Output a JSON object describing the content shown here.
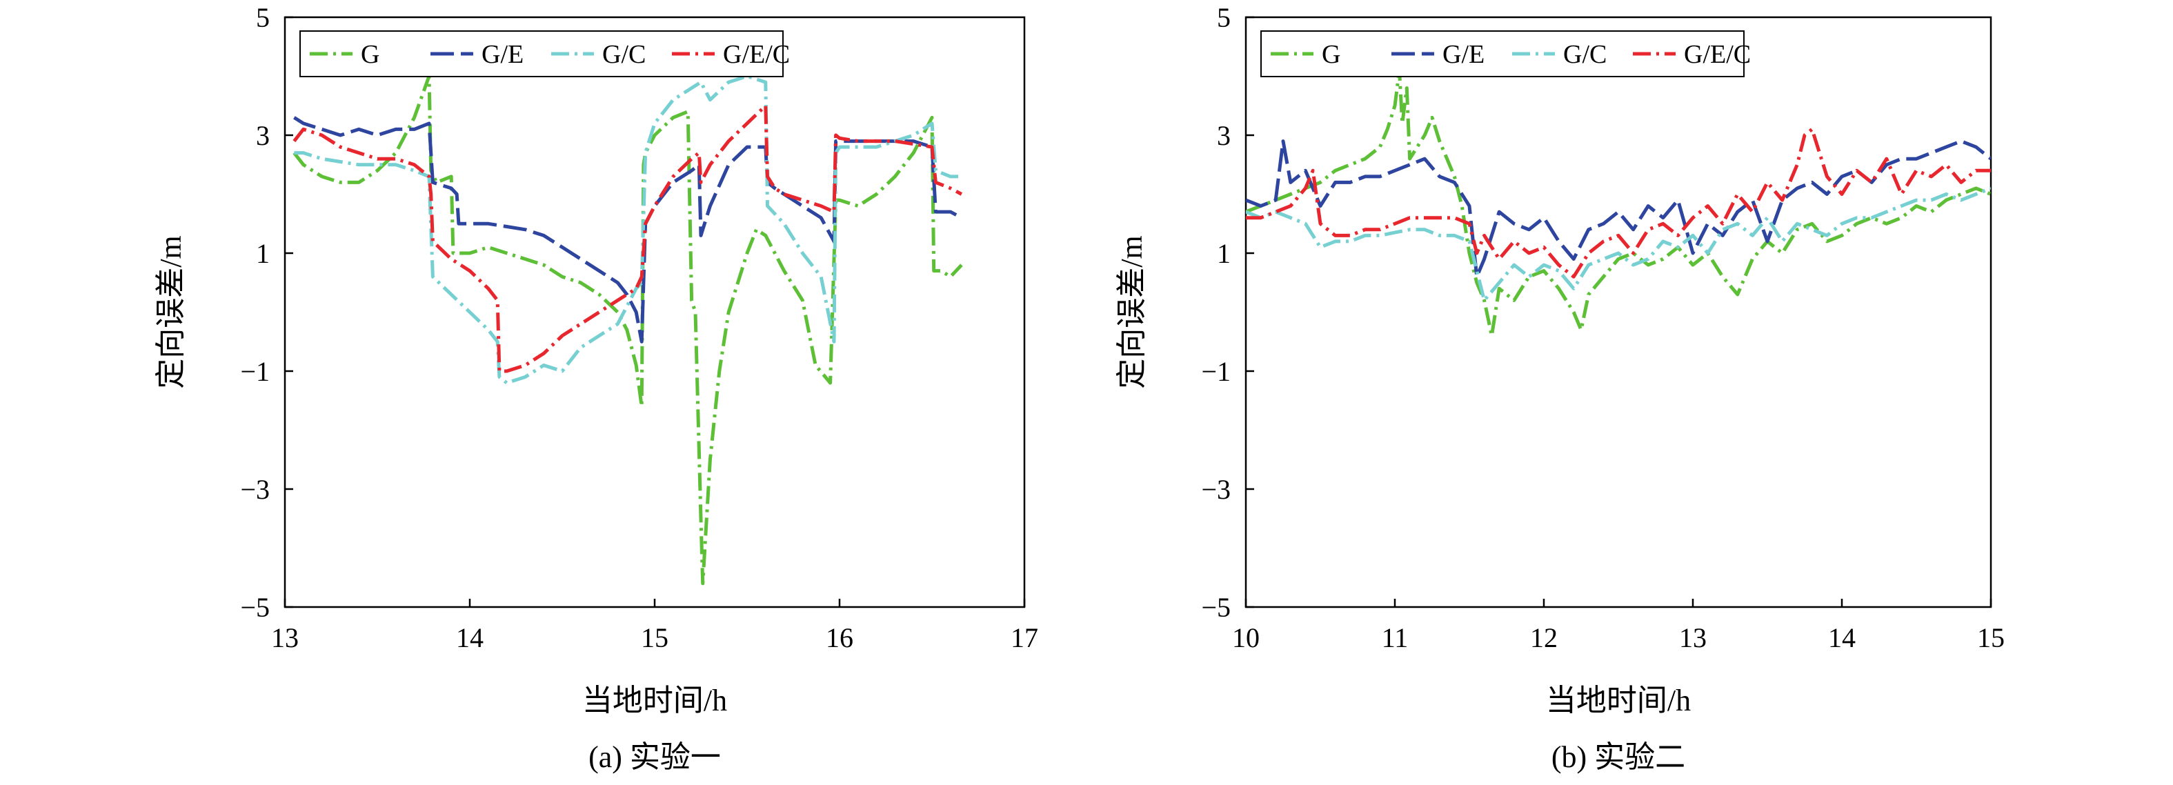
{
  "chart_data": [
    {
      "type": "line",
      "caption": "(a) 实验一",
      "xlabel": "当地时间/h",
      "ylabel": "定向误差/m",
      "xlim": [
        13,
        17
      ],
      "ylim": [
        -5,
        5
      ],
      "xticks": [
        13,
        14,
        15,
        16,
        17
      ],
      "yticks": [
        5,
        3,
        1,
        -1,
        -3,
        -5
      ],
      "ytick_labels": [
        "5",
        "3",
        "1",
        "−1",
        "−3",
        "−5"
      ],
      "grid": false,
      "legend": "top-left",
      "series": [
        {
          "name": "G",
          "color": "#5cbf35",
          "dash": "dashdot",
          "x": [
            13.05,
            13.1,
            13.2,
            13.3,
            13.4,
            13.5,
            13.6,
            13.7,
            13.78,
            13.79,
            13.82,
            13.9,
            13.91,
            14.0,
            14.1,
            14.2,
            14.3,
            14.4,
            14.5,
            14.6,
            14.7,
            14.8,
            14.85,
            14.9,
            14.93,
            14.94,
            14.95,
            15.0,
            15.1,
            15.18,
            15.2,
            15.22,
            15.25,
            15.26,
            15.3,
            15.35,
            15.4,
            15.5,
            15.55,
            15.6,
            15.7,
            15.8,
            15.87,
            15.95,
            15.98,
            16.0,
            16.1,
            16.2,
            16.3,
            16.4,
            16.5,
            16.51,
            16.55,
            16.6,
            16.66
          ],
          "y": [
            2.7,
            2.5,
            2.3,
            2.2,
            2.2,
            2.4,
            2.7,
            3.3,
            4.0,
            2.4,
            2.2,
            2.3,
            1.0,
            1.0,
            1.1,
            1.0,
            0.9,
            0.8,
            0.6,
            0.5,
            0.3,
            0.0,
            -0.3,
            -0.9,
            -1.6,
            2.5,
            2.7,
            3.0,
            3.3,
            3.4,
            0.2,
            0.0,
            -3.5,
            -4.6,
            -2.5,
            -1.0,
            0.0,
            1.0,
            1.4,
            1.3,
            0.7,
            0.2,
            -0.9,
            -1.2,
            1.9,
            1.9,
            1.8,
            2.0,
            2.3,
            2.7,
            3.3,
            0.7,
            0.7,
            0.6,
            0.8
          ]
        },
        {
          "name": "G/E",
          "color": "#2e45a0",
          "dash": "longdash",
          "x": [
            13.05,
            13.1,
            13.2,
            13.3,
            13.4,
            13.5,
            13.6,
            13.7,
            13.78,
            13.8,
            13.9,
            13.93,
            13.94,
            14.0,
            14.1,
            14.2,
            14.3,
            14.4,
            14.5,
            14.6,
            14.7,
            14.8,
            14.85,
            14.9,
            14.93,
            14.95,
            15.0,
            15.1,
            15.2,
            15.24,
            15.25,
            15.3,
            15.4,
            15.5,
            15.6,
            15.61,
            15.65,
            15.7,
            15.8,
            15.9,
            15.97,
            15.98,
            16.0,
            16.1,
            16.2,
            16.3,
            16.4,
            16.5,
            16.52,
            16.6,
            16.66
          ],
          "y": [
            3.3,
            3.2,
            3.1,
            3.0,
            3.1,
            3.0,
            3.1,
            3.1,
            3.2,
            2.2,
            2.1,
            2.0,
            1.5,
            1.5,
            1.5,
            1.45,
            1.4,
            1.3,
            1.1,
            0.9,
            0.7,
            0.5,
            0.3,
            0.0,
            -0.5,
            1.5,
            1.8,
            2.2,
            2.4,
            2.5,
            1.3,
            1.8,
            2.5,
            2.8,
            2.8,
            2.2,
            2.1,
            2.0,
            1.8,
            1.6,
            1.2,
            2.9,
            2.9,
            2.9,
            2.9,
            2.9,
            2.9,
            2.8,
            1.7,
            1.7,
            1.6
          ]
        },
        {
          "name": "G/C",
          "color": "#76d0d2",
          "dash": "dashdot",
          "x": [
            13.05,
            13.1,
            13.2,
            13.3,
            13.4,
            13.5,
            13.6,
            13.7,
            13.78,
            13.8,
            13.9,
            14.0,
            14.1,
            14.15,
            14.16,
            14.2,
            14.3,
            14.4,
            14.5,
            14.6,
            14.7,
            14.8,
            14.9,
            14.93,
            14.95,
            15.0,
            15.1,
            15.2,
            15.25,
            15.3,
            15.4,
            15.5,
            15.6,
            15.61,
            15.7,
            15.8,
            15.9,
            15.97,
            15.98,
            16.0,
            16.1,
            16.2,
            16.3,
            16.4,
            16.5,
            16.52,
            16.6,
            16.66
          ],
          "y": [
            2.7,
            2.7,
            2.6,
            2.55,
            2.5,
            2.5,
            2.5,
            2.4,
            2.3,
            0.6,
            0.3,
            0.0,
            -0.3,
            -0.5,
            -1.1,
            -1.2,
            -1.1,
            -0.9,
            -1.0,
            -0.6,
            -0.4,
            -0.2,
            0.4,
            0.5,
            2.7,
            3.2,
            3.6,
            3.8,
            3.9,
            3.6,
            3.9,
            4.0,
            3.9,
            1.8,
            1.5,
            1.0,
            0.6,
            -0.5,
            2.7,
            2.8,
            2.8,
            2.8,
            2.9,
            3.0,
            3.2,
            2.4,
            2.3,
            2.3
          ]
        },
        {
          "name": "G/E/C",
          "color": "#e8262e",
          "dash": "dashdot",
          "x": [
            13.05,
            13.1,
            13.2,
            13.3,
            13.4,
            13.5,
            13.6,
            13.7,
            13.78,
            13.79,
            13.8,
            13.9,
            14.0,
            14.1,
            14.15,
            14.16,
            14.2,
            14.3,
            14.4,
            14.5,
            14.6,
            14.7,
            14.8,
            14.85,
            14.9,
            14.93,
            14.95,
            15.0,
            15.1,
            15.2,
            15.24,
            15.25,
            15.3,
            15.4,
            15.5,
            15.6,
            15.61,
            15.65,
            15.7,
            15.8,
            15.9,
            15.97,
            15.98,
            16.0,
            16.1,
            16.2,
            16.3,
            16.4,
            16.5,
            16.52,
            16.6,
            16.66
          ],
          "y": [
            2.9,
            3.1,
            3.0,
            2.8,
            2.7,
            2.6,
            2.6,
            2.5,
            2.3,
            2.0,
            1.2,
            0.9,
            0.7,
            0.4,
            0.2,
            -1.0,
            -1.0,
            -0.9,
            -0.7,
            -0.4,
            -0.2,
            0.0,
            0.2,
            0.3,
            0.4,
            0.6,
            1.5,
            1.8,
            2.3,
            2.6,
            2.7,
            2.2,
            2.5,
            2.9,
            3.2,
            3.5,
            2.3,
            2.1,
            2.0,
            1.9,
            1.8,
            1.7,
            3.0,
            2.95,
            2.9,
            2.9,
            2.9,
            2.85,
            2.8,
            2.2,
            2.1,
            2.0
          ]
        }
      ]
    },
    {
      "type": "line",
      "caption": "(b) 实验二",
      "xlabel": "当地时间/h",
      "ylabel": "定向误差/m",
      "xlim": [
        10,
        15
      ],
      "ylim": [
        -5,
        5
      ],
      "xticks": [
        10,
        11,
        12,
        13,
        14,
        15
      ],
      "yticks": [
        5,
        3,
        1,
        -1,
        -3,
        -5
      ],
      "ytick_labels": [
        "5",
        "3",
        "1",
        "−1",
        "−3",
        "−5"
      ],
      "grid": false,
      "legend": "top-left",
      "series": [
        {
          "name": "G",
          "color": "#5cbf35",
          "dash": "dashdot",
          "x": [
            10.0,
            10.1,
            10.2,
            10.3,
            10.4,
            10.5,
            10.6,
            10.7,
            10.8,
            10.9,
            10.95,
            11.0,
            11.03,
            11.05,
            11.08,
            11.1,
            11.15,
            11.2,
            11.25,
            11.3,
            11.35,
            11.4,
            11.45,
            11.5,
            11.55,
            11.6,
            11.65,
            11.7,
            11.8,
            11.9,
            12.0,
            12.1,
            12.2,
            12.25,
            12.3,
            12.4,
            12.5,
            12.6,
            12.7,
            12.8,
            12.9,
            13.0,
            13.1,
            13.2,
            13.3,
            13.4,
            13.5,
            13.6,
            13.7,
            13.8,
            13.9,
            14.0,
            14.1,
            14.2,
            14.3,
            14.4,
            14.5,
            14.6,
            14.7,
            14.8,
            14.9,
            15.0
          ],
          "y": [
            1.7,
            1.8,
            1.9,
            2.0,
            2.1,
            2.2,
            2.4,
            2.5,
            2.6,
            2.8,
            3.1,
            3.5,
            4.1,
            3.2,
            3.8,
            2.6,
            2.8,
            3.0,
            3.3,
            2.9,
            2.6,
            2.3,
            1.8,
            1.0,
            0.5,
            0.2,
            -0.4,
            0.4,
            0.2,
            0.6,
            0.7,
            0.4,
            0.0,
            -0.3,
            0.3,
            0.6,
            0.9,
            1.0,
            0.8,
            0.9,
            1.1,
            0.8,
            1.0,
            0.6,
            0.3,
            0.9,
            1.2,
            1.0,
            1.4,
            1.5,
            1.2,
            1.3,
            1.5,
            1.6,
            1.5,
            1.6,
            1.8,
            1.7,
            1.9,
            2.0,
            2.1,
            2.0
          ]
        },
        {
          "name": "G/E",
          "color": "#2e45a0",
          "dash": "longdash",
          "x": [
            10.0,
            10.1,
            10.2,
            10.25,
            10.3,
            10.4,
            10.5,
            10.6,
            10.7,
            10.8,
            10.9,
            11.0,
            11.1,
            11.2,
            11.3,
            11.4,
            11.5,
            11.55,
            11.6,
            11.7,
            11.8,
            11.9,
            12.0,
            12.1,
            12.2,
            12.3,
            12.4,
            12.5,
            12.6,
            12.7,
            12.8,
            12.9,
            13.0,
            13.1,
            13.2,
            13.3,
            13.4,
            13.5,
            13.6,
            13.7,
            13.8,
            13.9,
            14.0,
            14.1,
            14.2,
            14.3,
            14.4,
            14.5,
            14.6,
            14.7,
            14.8,
            14.9,
            15.0
          ],
          "y": [
            1.9,
            1.8,
            1.9,
            2.9,
            2.2,
            2.4,
            1.8,
            2.2,
            2.2,
            2.3,
            2.3,
            2.4,
            2.5,
            2.6,
            2.3,
            2.2,
            1.8,
            0.6,
            0.9,
            1.7,
            1.5,
            1.4,
            1.6,
            1.2,
            0.9,
            1.4,
            1.5,
            1.7,
            1.4,
            1.8,
            1.6,
            1.9,
            1.0,
            1.5,
            1.3,
            1.7,
            1.9,
            1.2,
            1.9,
            2.1,
            2.2,
            2.0,
            2.3,
            2.4,
            2.2,
            2.5,
            2.6,
            2.6,
            2.7,
            2.8,
            2.9,
            2.8,
            2.6
          ]
        },
        {
          "name": "G/C",
          "color": "#76d0d2",
          "dash": "dashdot",
          "x": [
            10.0,
            10.1,
            10.2,
            10.3,
            10.4,
            10.5,
            10.6,
            10.7,
            10.8,
            10.9,
            11.0,
            11.1,
            11.2,
            11.3,
            11.4,
            11.5,
            11.6,
            11.7,
            11.8,
            11.9,
            12.0,
            12.1,
            12.2,
            12.3,
            12.4,
            12.5,
            12.6,
            12.7,
            12.8,
            12.9,
            13.0,
            13.1,
            13.2,
            13.3,
            13.4,
            13.5,
            13.6,
            13.7,
            13.8,
            13.9,
            14.0,
            14.1,
            14.2,
            14.3,
            14.4,
            14.5,
            14.6,
            14.7,
            14.8,
            14.9,
            15.0
          ],
          "y": [
            1.7,
            1.6,
            1.7,
            1.6,
            1.5,
            1.1,
            1.2,
            1.2,
            1.3,
            1.3,
            1.35,
            1.4,
            1.4,
            1.3,
            1.3,
            1.2,
            0.2,
            0.5,
            0.8,
            0.6,
            0.8,
            0.7,
            0.4,
            0.8,
            0.9,
            1.0,
            0.8,
            0.9,
            1.2,
            1.1,
            1.3,
            1.0,
            1.4,
            1.5,
            1.3,
            1.6,
            1.2,
            1.5,
            1.4,
            1.3,
            1.5,
            1.6,
            1.6,
            1.7,
            1.8,
            1.9,
            1.9,
            2.0,
            1.9,
            2.0,
            2.1
          ]
        },
        {
          "name": "G/E/C",
          "color": "#e8262e",
          "dash": "dashdot",
          "x": [
            10.0,
            10.1,
            10.2,
            10.3,
            10.4,
            10.45,
            10.5,
            10.6,
            10.7,
            10.8,
            10.9,
            11.0,
            11.1,
            11.2,
            11.3,
            11.4,
            11.5,
            11.55,
            11.6,
            11.7,
            11.8,
            11.9,
            12.0,
            12.1,
            12.2,
            12.3,
            12.4,
            12.5,
            12.6,
            12.7,
            12.8,
            12.9,
            13.0,
            13.1,
            13.2,
            13.3,
            13.4,
            13.5,
            13.6,
            13.7,
            13.75,
            13.8,
            13.9,
            14.0,
            14.1,
            14.2,
            14.3,
            14.4,
            14.5,
            14.6,
            14.7,
            14.8,
            14.9,
            15.0
          ],
          "y": [
            1.6,
            1.6,
            1.7,
            1.8,
            2.1,
            2.4,
            1.5,
            1.3,
            1.3,
            1.4,
            1.4,
            1.5,
            1.6,
            1.6,
            1.6,
            1.6,
            1.5,
            1.0,
            1.3,
            0.9,
            1.2,
            1.0,
            1.1,
            0.8,
            0.6,
            1.0,
            1.2,
            1.3,
            1.0,
            1.4,
            1.5,
            1.3,
            1.6,
            1.8,
            1.5,
            2.0,
            1.7,
            2.2,
            1.9,
            2.5,
            3.0,
            3.1,
            2.3,
            2.0,
            2.4,
            2.2,
            2.6,
            2.0,
            2.4,
            2.3,
            2.5,
            2.2,
            2.4,
            2.4
          ]
        }
      ]
    }
  ]
}
